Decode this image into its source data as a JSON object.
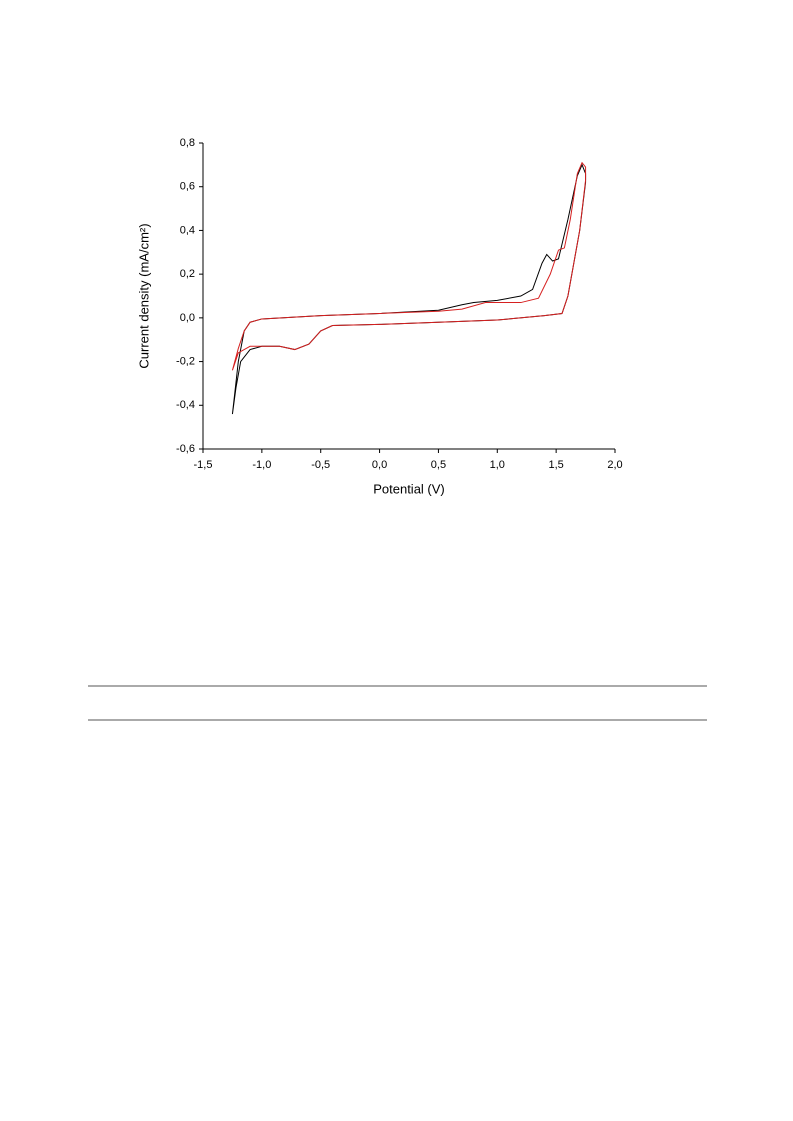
{
  "chart_data": {
    "type": "line",
    "xlabel": "Potential (V)",
    "ylabel": "Current density (mA/cm²)",
    "xlim": [
      -1.5,
      2.0
    ],
    "ylim": [
      -0.6,
      0.8
    ],
    "xticks": [
      {
        "value": -1.5,
        "label": "-1,5"
      },
      {
        "value": -1.0,
        "label": "-1,0"
      },
      {
        "value": -0.5,
        "label": "-0,5"
      },
      {
        "value": 0,
        "label": "0,0"
      },
      {
        "value": 0.5,
        "label": "0,5"
      },
      {
        "value": 1.0,
        "label": "1,0"
      },
      {
        "value": 1.5,
        "label": "1,5"
      },
      {
        "value": 2.0,
        "label": "2,0"
      }
    ],
    "yticks": [
      {
        "value": -0.6,
        "label": "-0,6"
      },
      {
        "value": -0.4,
        "label": "-0,4"
      },
      {
        "value": -0.2,
        "label": "-0,2"
      },
      {
        "value": 0,
        "label": "0,0"
      },
      {
        "value": 0.2,
        "label": "0,2"
      },
      {
        "value": 0.4,
        "label": "0,4"
      },
      {
        "value": 0.6,
        "label": "0,6"
      },
      {
        "value": 0.8,
        "label": "0,8"
      }
    ],
    "series": [
      {
        "color": "#000000",
        "x": [
          -1.25,
          -1.2,
          -1.15,
          -1.1,
          -1.0,
          -0.5,
          0,
          0.5,
          0.7,
          0.8,
          1.0,
          1.2,
          1.3,
          1.38,
          1.42,
          1.47,
          1.52,
          1.6,
          1.68,
          1.72,
          1.75,
          1.75,
          1.7,
          1.6,
          1.55,
          1.4,
          1.0,
          0.5,
          0,
          -0.4,
          -0.5,
          -0.6,
          -0.72,
          -0.85,
          -1.0,
          -1.1,
          -1.18,
          -1.22,
          -1.25
        ],
        "values": [
          -0.44,
          -0.2,
          -0.06,
          -0.02,
          -0.005,
          0.01,
          0.02,
          0.035,
          0.06,
          0.07,
          0.08,
          0.1,
          0.13,
          0.25,
          0.29,
          0.26,
          0.27,
          0.45,
          0.65,
          0.7,
          0.66,
          0.62,
          0.4,
          0.1,
          0.02,
          0.01,
          -0.01,
          -0.02,
          -0.03,
          -0.035,
          -0.06,
          -0.12,
          -0.145,
          -0.13,
          -0.13,
          -0.145,
          -0.2,
          -0.32,
          -0.44
        ]
      },
      {
        "color": "#d62020",
        "x": [
          -1.25,
          -1.2,
          -1.15,
          -1.1,
          -1.0,
          -0.5,
          0,
          0.5,
          0.7,
          0.9,
          1.0,
          1.2,
          1.35,
          1.45,
          1.52,
          1.57,
          1.62,
          1.68,
          1.72,
          1.75,
          1.75,
          1.7,
          1.6,
          1.55,
          1.4,
          1.0,
          0.5,
          0,
          -0.4,
          -0.5,
          -0.6,
          -0.72,
          -0.85,
          -1.0,
          -1.1,
          -1.2,
          -1.25
        ],
        "values": [
          -0.24,
          -0.14,
          -0.06,
          -0.02,
          -0.005,
          0.01,
          0.02,
          0.03,
          0.04,
          0.07,
          0.07,
          0.07,
          0.09,
          0.2,
          0.31,
          0.32,
          0.45,
          0.66,
          0.71,
          0.69,
          0.63,
          0.4,
          0.1,
          0.02,
          0.01,
          -0.01,
          -0.02,
          -0.03,
          -0.035,
          -0.06,
          -0.12,
          -0.145,
          -0.13,
          -0.13,
          -0.13,
          -0.16,
          -0.24
        ]
      }
    ]
  }
}
